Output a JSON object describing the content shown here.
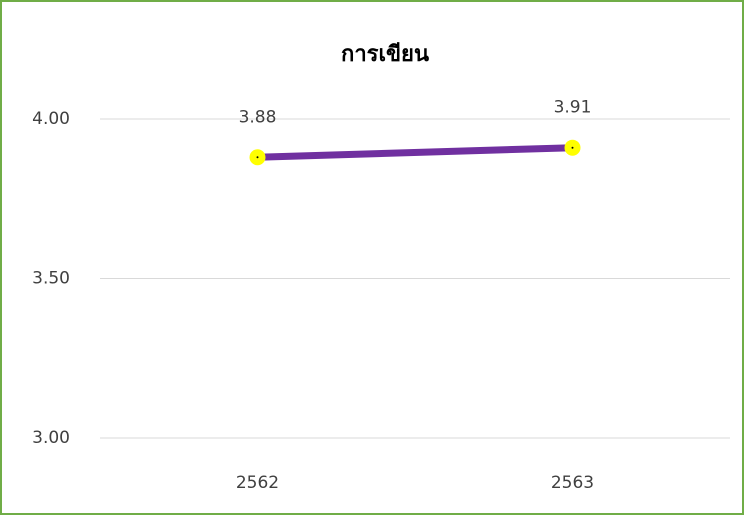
{
  "chart_data": {
    "type": "line",
    "title": "การเขียน",
    "categories": [
      "2562",
      "2563"
    ],
    "values": [
      3.88,
      3.91
    ],
    "color": "#7030a0",
    "marker_color": "#ffff00",
    "ylim": [
      3,
      4
    ],
    "yticks": [
      {
        "value": 3,
        "label": "3.00"
      },
      {
        "value": 3.5,
        "label": "3.50"
      },
      {
        "value": 4,
        "label": "4.00"
      }
    ],
    "grid": true
  }
}
